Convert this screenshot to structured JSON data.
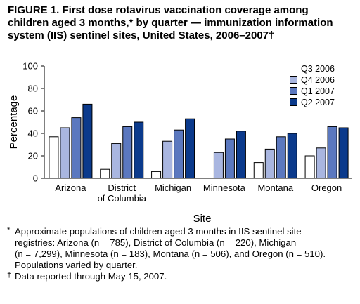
{
  "figure_title_lines": [
    "FIGURE 1. First dose rotavirus vaccination coverage among",
    "children aged 3 months,* by quarter — immunization information",
    "system (IIS) sentinel sites, United States, 2006–2007†"
  ],
  "chart_data": {
    "type": "bar",
    "categories": [
      [
        "Arizona"
      ],
      [
        "District",
        "of Columbia"
      ],
      [
        "Michigan"
      ],
      [
        "Minnesota"
      ],
      [
        "Montana"
      ],
      [
        "Oregon"
      ]
    ],
    "series": [
      {
        "name": "Q3 2006",
        "color": "#ffffff",
        "values": [
          37,
          8,
          6,
          null,
          14,
          20
        ]
      },
      {
        "name": "Q4 2006",
        "color": "#a9b6e0",
        "values": [
          45,
          31,
          33,
          23,
          26,
          27
        ]
      },
      {
        "name": "Q1 2007",
        "color": "#5b78bf",
        "values": [
          54,
          46,
          43,
          35,
          37,
          46
        ]
      },
      {
        "name": "Q2 2007",
        "color": "#0b3a8c",
        "values": [
          66,
          50,
          53,
          42,
          40,
          45
        ]
      }
    ],
    "xlabel": "Site",
    "ylabel": "Percentage",
    "ylim": [
      0,
      100
    ],
    "yticks": [
      0,
      20,
      40,
      60,
      80,
      100
    ],
    "legend_position": "top-right",
    "grid": false
  },
  "footnotes": [
    {
      "symbol": "*",
      "lines": [
        "Approximate populations of children aged 3 months in IIS sentinel site",
        "registries: Arizona (n = 785), District of Columbia (n = 220), Michigan",
        "(n = 7,299), Minnesota (n = 183), Montana (n = 506), and Oregon (n = 510).",
        "Populations varied by quarter."
      ]
    },
    {
      "symbol": "†",
      "lines": [
        "Data reported through May 15, 2007."
      ]
    }
  ]
}
